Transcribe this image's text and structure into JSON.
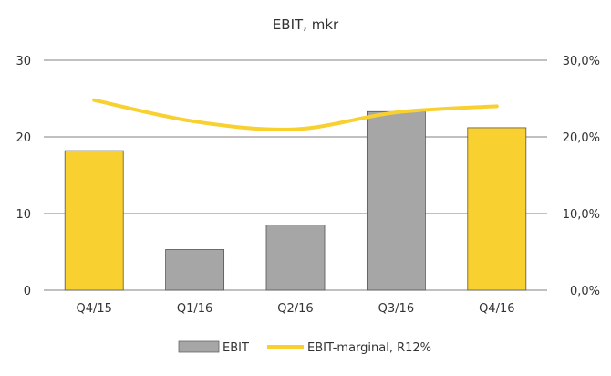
{
  "chart_data": {
    "type": "bar",
    "title": "EBIT, mkr",
    "categories": [
      "Q4/15",
      "Q1/16",
      "Q2/16",
      "Q3/16",
      "Q4/16"
    ],
    "series": [
      {
        "name": "EBIT",
        "kind": "bar",
        "axis": "left",
        "values": [
          18.2,
          5.3,
          8.5,
          23.3,
          21.2
        ],
        "colors": [
          "#f8d030",
          "#a6a6a6",
          "#a6a6a6",
          "#a6a6a6",
          "#f8d030"
        ]
      },
      {
        "name": "EBIT-marginal, R12%",
        "kind": "line",
        "axis": "right",
        "color": "#f8d030",
        "values": [
          24.8,
          22.0,
          21.0,
          23.2,
          24.0
        ]
      }
    ],
    "ylim_left": [
      0,
      30
    ],
    "ylim_right": [
      0,
      30
    ],
    "yticks_left": [
      "0",
      "10",
      "20",
      "30"
    ],
    "yticks_right": [
      "0,0%",
      "10,0%",
      "20,0%",
      "30,0%"
    ],
    "grid": true,
    "legend_position": "bottom",
    "legend_bar_color": "#a6a6a6"
  }
}
